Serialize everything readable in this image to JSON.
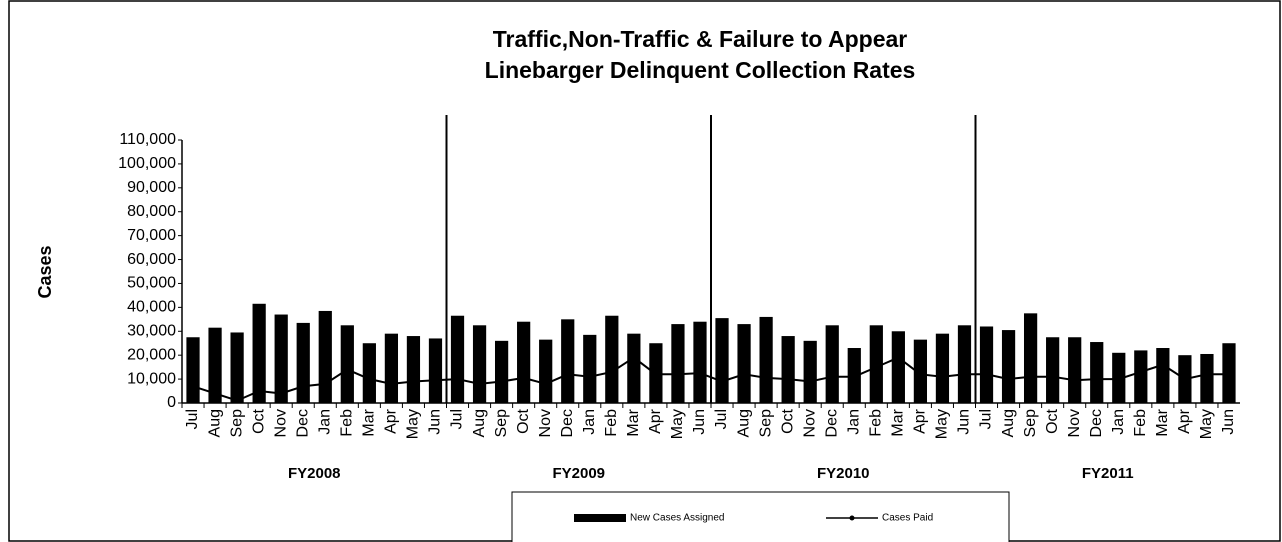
{
  "chart_data": {
    "type": "bar",
    "title": [
      "Traffic,Non-Traffic & Failure to Appear",
      "Linebarger Delinquent Collection Rates"
    ],
    "y_label": "Cases",
    "categories": [
      "Jul",
      "Aug",
      "Sep",
      "Oct",
      "Nov",
      "Dec",
      "Jan",
      "Feb",
      "Mar",
      "Apr",
      "May",
      "Jun",
      "Jul",
      "Aug",
      "Sep",
      "Oct",
      "Nov",
      "Dec",
      "Jan",
      "Feb",
      "Mar",
      "Apr",
      "May",
      "Jun",
      "Jul",
      "Aug",
      "Sep",
      "Oct",
      "Nov",
      "Dec",
      "Jan",
      "Feb",
      "Mar",
      "Apr",
      "May",
      "Jun",
      "Jul",
      "Aug",
      "Sep",
      "Oct",
      "Nov",
      "Dec",
      "Jan",
      "Feb",
      "Mar",
      "Apr",
      "May",
      "Jun"
    ],
    "groups": [
      "FY2008",
      "FY2009",
      "FY2010",
      "FY2011"
    ],
    "series": [
      {
        "name": "New Cases Assigned",
        "type": "bar",
        "color": "#000000",
        "values": [
          27500,
          31500,
          29500,
          41500,
          37000,
          33500,
          38500,
          32500,
          25000,
          29000,
          28000,
          27000,
          36500,
          32500,
          26000,
          34000,
          26500,
          35000,
          28500,
          36500,
          29000,
          25000,
          33000,
          34000,
          35500,
          33000,
          36000,
          28000,
          26000,
          32500,
          23000,
          32500,
          30000,
          26500,
          29000,
          32500,
          32000,
          30500,
          37500,
          27500,
          27500,
          25500,
          21000,
          22000,
          23000,
          20000,
          20500,
          25000
        ]
      },
      {
        "name": "Cases Paid",
        "type": "line",
        "color": "#000000",
        "values": [
          7000,
          4000,
          1000,
          5000,
          4000,
          7000,
          8000,
          14000,
          10000,
          8000,
          9000,
          9500,
          10000,
          8000,
          9000,
          10500,
          8000,
          12000,
          11000,
          13000,
          19000,
          12000,
          12000,
          12500,
          9000,
          12000,
          10500,
          10000,
          9000,
          11000,
          11000,
          15000,
          19000,
          12000,
          11000,
          12000,
          12000,
          10000,
          11000,
          11000,
          9500,
          10000,
          10000,
          13000,
          16000,
          10000,
          12000,
          12000
        ]
      }
    ],
    "ylim": [
      0,
      110000
    ],
    "yticks": [
      0,
      {
        "value": 10000,
        "label": "10,000"
      },
      {
        "value": 20000,
        "label": "20,000"
      },
      {
        "value": 30000,
        "label": "30,000"
      },
      {
        "value": 40000,
        "label": "40,000"
      },
      {
        "value": 50000,
        "label": "50,000"
      },
      {
        "value": 60000,
        "label": "60,000"
      },
      {
        "value": 70000,
        "label": "70,000"
      },
      {
        "value": 80000,
        "label": "80,000"
      },
      {
        "value": 90000,
        "label": "90,000"
      },
      {
        "value": 100000,
        "label": "100,000"
      },
      {
        "value": 110000,
        "label": "110,000"
      }
    ],
    "legend": "bottom"
  }
}
